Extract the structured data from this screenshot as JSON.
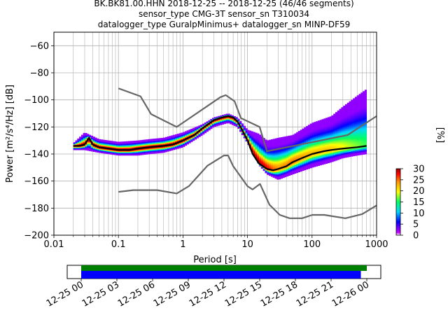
{
  "title": {
    "line1": "BK.BK81.00.HHN   2018-12-25 -- 2018-12-25  (46/46 segments)",
    "line2": "sensor_type CMG-3T sensor_sn T310034",
    "line3": "datalogger_type GuralpMinimus+ datalogger_sn MINP-DF59"
  },
  "chart_data": {
    "type": "heatmap",
    "xlabel": "Period [s]",
    "ylabel": "Power [m²/s⁴/Hz] [dB]",
    "x_scale": "log",
    "xlim": [
      0.01,
      1000
    ],
    "ylim": [
      -200,
      -50
    ],
    "x_ticks": [
      0.01,
      0.1,
      1,
      10,
      100,
      1000
    ],
    "x_tick_labels": [
      "0.01",
      "0.1",
      "1",
      "10",
      "100",
      "1000"
    ],
    "y_ticks": [
      -200,
      -180,
      -160,
      -140,
      -120,
      -100,
      -80,
      -60
    ],
    "y_tick_labels": [
      "−200",
      "−180",
      "−160",
      "−140",
      "−120",
      "−100",
      "−80",
      "−60"
    ],
    "grid": true,
    "colorbar": {
      "label": "[%]",
      "min": 0,
      "max": 30,
      "ticks": [
        0,
        5,
        10,
        15,
        20,
        25,
        30
      ],
      "tick_labels": [
        "0",
        "5",
        "10",
        "15",
        "20",
        "25",
        "30"
      ],
      "colormap": [
        "#ffffff",
        "#c800ff",
        "#0000ff",
        "#00d7ff",
        "#00ff64",
        "#ffff00",
        "#ff9600",
        "#ff0000",
        "#960000"
      ]
    },
    "nhnm": {
      "name": "high noise model",
      "color": "#666666",
      "x": [
        0.1,
        0.22,
        0.32,
        0.8,
        3.8,
        4.6,
        6.3,
        7.9,
        15.4,
        20,
        354.8,
        1000
      ],
      "y": [
        -91.5,
        -97.4,
        -110.5,
        -120,
        -98,
        -96.5,
        -101,
        -113.5,
        -120,
        -138,
        -126,
        -112
      ]
    },
    "nlnm": {
      "name": "low noise model",
      "color": "#666666",
      "x": [
        0.1,
        0.17,
        0.4,
        0.8,
        1.24,
        2.4,
        4.3,
        5,
        6,
        10,
        12,
        15.6,
        21.9,
        31.6,
        45,
        70,
        101,
        154,
        328,
        600,
        1000
      ],
      "y": [
        -168,
        -166.7,
        -166.7,
        -169.2,
        -163.7,
        -148.6,
        -141.1,
        -141.1,
        -149,
        -163.8,
        -166.2,
        -162.1,
        -177.5,
        -185,
        -187.5,
        -187.5,
        -185,
        -185,
        -187.5,
        -184.4,
        -178
      ]
    },
    "ppsd_mode": {
      "name": "mode",
      "color": "#000000",
      "x": [
        0.02,
        0.025,
        0.03,
        0.035,
        0.04,
        0.05,
        0.07,
        0.1,
        0.15,
        0.2,
        0.3,
        0.5,
        0.7,
        1,
        1.5,
        2,
        3,
        4,
        5,
        6,
        7,
        8,
        10,
        12,
        15,
        20,
        25,
        30,
        40,
        50,
        70,
        100,
        150,
        200,
        300,
        500,
        700
      ],
      "y": [
        -134,
        -134,
        -133,
        -128,
        -133,
        -135,
        -136,
        -137,
        -137,
        -136,
        -135,
        -134,
        -133,
        -130,
        -126,
        -121,
        -115,
        -113,
        -112,
        -113,
        -116,
        -121,
        -130,
        -140,
        -147,
        -151,
        -152,
        -151,
        -149,
        -146,
        -143,
        -140,
        -138,
        -137,
        -136,
        -135,
        -134
      ]
    },
    "ppsd_band": {
      "color_min_percent": 1,
      "color_max_percent": 30,
      "x": [
        0.02,
        0.03,
        0.05,
        0.1,
        0.2,
        0.3,
        0.5,
        1,
        2,
        3,
        5,
        7,
        10,
        15,
        20,
        30,
        50,
        100,
        200,
        300,
        500,
        700
      ],
      "upper": [
        -132,
        -124,
        -129,
        -131,
        -130,
        -129,
        -128,
        -124,
        -118,
        -113,
        -110,
        -113,
        -122,
        -125,
        -130,
        -128,
        -126,
        -117,
        -112,
        -105,
        -97,
        -92
      ],
      "lower": [
        -137,
        -137,
        -139,
        -141,
        -141,
        -140,
        -139,
        -135,
        -126,
        -120,
        -117,
        -120,
        -132,
        -148,
        -155,
        -159,
        -155,
        -150,
        -146,
        -143,
        -141,
        -140
      ]
    },
    "availability": {
      "x_tick_labels": [
        "12-25 00",
        "12-25 03",
        "12-25 06",
        "12-25 09",
        "12-25 12",
        "12-25 15",
        "12-25 18",
        "12-25 21",
        "12-26 00"
      ],
      "data_color": "#0000ff",
      "used_color": "#008000",
      "data_span_hours": [
        0,
        23.5
      ],
      "used_span_hours": [
        0,
        24.0
      ]
    }
  }
}
